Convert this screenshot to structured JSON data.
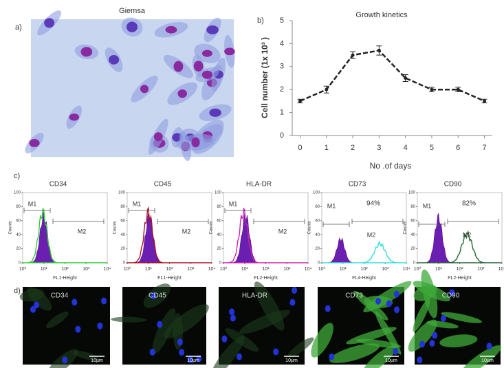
{
  "panel_a": {
    "label": "a)",
    "title": "Giemsa"
  },
  "chart_data": {
    "type": "line",
    "panel_label": "b)",
    "title": "Growth kinetics",
    "x_label": "No .of days",
    "y_label": "Cell number (1x 10³ )",
    "x": [
      0,
      1,
      2,
      3,
      4,
      5,
      6,
      7
    ],
    "values": [
      1.5,
      2.0,
      3.5,
      3.7,
      2.5,
      2.0,
      2.0,
      1.5
    ],
    "errors": [
      0.08,
      0.15,
      0.15,
      0.2,
      0.15,
      0.1,
      0.1,
      0.08
    ],
    "color": "#222222",
    "xlim": [
      -0.3,
      7.3
    ],
    "xticks": [
      0,
      1,
      2,
      3,
      4,
      5,
      6,
      7
    ],
    "ylim": [
      0,
      5
    ],
    "yticks": [
      0,
      1,
      2,
      3,
      4,
      5
    ]
  },
  "panel_c": {
    "label": "c)",
    "plots": [
      {
        "title": "CD34",
        "x_label": "FL1-Height",
        "gates": [
          "M1",
          "M2"
        ],
        "line_color": "#33cc33"
      },
      {
        "title": "CD45",
        "x_label": "FL1-Height",
        "gates": [
          "M1",
          "M2"
        ],
        "line_color": "#aa1122"
      },
      {
        "title": "HLA-DR",
        "x_label": "FL2-Height",
        "gates": [
          "M1",
          "M2"
        ],
        "line_color": "#cc22aa"
      },
      {
        "title": "CD73",
        "x_label": "FL4-Height",
        "gates": [
          "M1",
          "M2"
        ],
        "percent": "94%",
        "line_color": "#33dddd"
      },
      {
        "title": "CD90",
        "x_label": "FL2-Height",
        "gates": [
          "M1",
          "M2"
        ],
        "percent": "82%",
        "line_color": "#226633"
      }
    ],
    "y_label": "Counts",
    "ylim": [
      0,
      100
    ],
    "yticks": [
      0,
      20,
      40,
      60,
      80,
      100
    ],
    "xscale": "log",
    "xlim": [
      1,
      10000
    ],
    "xticks": [
      {
        "value": 1,
        "label": "10⁰"
      },
      {
        "value": 10,
        "label": "10¹"
      },
      {
        "value": 100,
        "label": "10²"
      },
      {
        "value": 1000,
        "label": "10³"
      },
      {
        "value": 10000,
        "label": "10⁴"
      }
    ],
    "fill_color": "#6a1fb0"
  },
  "panel_d": {
    "label": "d)",
    "images": [
      {
        "title": "CD34",
        "scale_bar": "10µm"
      },
      {
        "title": "CD45",
        "scale_bar": "10µm"
      },
      {
        "title": "HLA-DR",
        "scale_bar": "10µm"
      },
      {
        "title": "CD73",
        "scale_bar": "10µm"
      },
      {
        "title": "CD90",
        "scale_bar": "10µm"
      }
    ]
  }
}
